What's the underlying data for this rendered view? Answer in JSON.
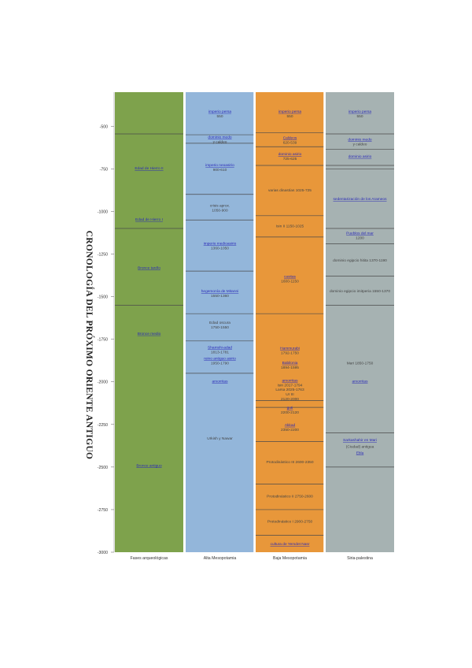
{
  "page": {
    "title": "CRONOLOGÍA DEL PRÓXIMO ORIENTE ANTIGUO"
  },
  "colors": {
    "green": "#7ea24c",
    "blue": "#93b6da",
    "orange": "#e8973a",
    "gray": "#a6b2b2",
    "link": "#2a2ab8",
    "text": "#444444",
    "divider": "#4a4a4a"
  },
  "chart_data": {
    "type": "table",
    "ylim": [
      -3000,
      -300
    ],
    "yticks": [
      -500,
      -750,
      -1000,
      -1250,
      -1500,
      -1750,
      -2000,
      -2250,
      -2500,
      -2750,
      -3000
    ],
    "columns": [
      {
        "name": "Fases arqueológicas",
        "color": "green",
        "boundaries": [
          -545,
          -1100,
          -1550
        ],
        "labels": [
          {
            "lines": [
              "Edad de Hierro II"
            ],
            "y": -745,
            "link": true
          },
          {
            "lines": [
              "Edad de Hierro I"
            ],
            "y": -1045,
            "link": true
          },
          {
            "lines": [
              "Bronce tardío"
            ],
            "y": -1330,
            "link": true
          },
          {
            "lines": [
              "Bronce medio"
            ],
            "y": -1715,
            "link": true
          },
          {
            "lines": [
              "Bronce antiguo"
            ],
            "y": -2490,
            "link": true
          }
        ]
      },
      {
        "name": "Alta Mesopotamia",
        "color": "blue",
        "boundaries": [
          -550,
          -600,
          -900,
          -1050,
          -1350,
          -1600,
          -1760,
          -1950
        ],
        "labels": [
          {
            "lines": [
              "imperio persa",
              "550"
            ],
            "y": -425,
            "link": true
          },
          {
            "lines": [
              "dominio medo",
              "y caldeo"
            ],
            "y": -575,
            "link": true
          },
          {
            "lines": [
              "imperio neoasirio",
              "900-610"
            ],
            "y": -740,
            "link": true
          },
          {
            "lines": [
              "crisis aprox.",
              "1050-900"
            ],
            "y": -978,
            "link": false
          },
          {
            "lines": [
              "imperio medioasirio",
              "1360-1050"
            ],
            "y": -1200,
            "link": true
          },
          {
            "lines": [
              "hegemonía de Mitanni",
              "1550-1360"
            ],
            "y": -1480,
            "link": true
          },
          {
            "lines": [
              "Edad oscura",
              "1750-1550"
            ],
            "y": -1665,
            "link": false
          },
          {
            "lines": [
              "Shamshi-adad",
              "1813-1781"
            ],
            "y": -1810,
            "link": true
          },
          {
            "lines": [
              "reino antiguo asirio",
              "1950-1790"
            ],
            "y": -1875,
            "link": true
          },
          {
            "lines": [
              "amorritas"
            ],
            "y": -1995,
            "link": true
          },
          {
            "lines": [
              "Urkish y Nawar"
            ],
            "y": -2330,
            "link": false
          }
        ]
      },
      {
        "name": "Baja Mesopotamia",
        "color": "orange",
        "boundaries": [
          -539,
          -620,
          -730,
          -1025,
          -1150,
          -1600,
          -2110,
          -2150,
          -2350,
          -2600,
          -2750,
          -2900
        ],
        "labels": [
          {
            "lines": [
              "imperio persa",
              "550"
            ],
            "y": -425,
            "link": true
          },
          {
            "lines": [
              "Caldeos",
              "620-539"
            ],
            "y": -580,
            "link": true
          },
          {
            "lines": [
              "dominio asirio",
              "725-625"
            ],
            "y": -676,
            "link": true
          },
          {
            "lines": [
              "varias dinastías 1025-725"
            ],
            "y": -875,
            "link": false
          },
          {
            "lines": [
              "Isin II 1150-1025"
            ],
            "y": -1085,
            "link": false
          },
          {
            "lines": [
              "casitas",
              "1600-1150"
            ],
            "y": -1395,
            "link": true
          },
          {
            "lines": [
              "Hammurabi",
              "1792-1750"
            ],
            "y": -1815,
            "link": true
          },
          {
            "lines": [
              "Babilonia",
              "1894-1595"
            ],
            "y": -1900,
            "link": true
          },
          {
            "lines": [
              "amorritas",
              "Isin 2017-1794"
            ],
            "y": -2005,
            "link": true
          },
          {
            "lines": [
              "Larsa 2025-1763"
            ],
            "y": -2045,
            "link": false
          },
          {
            "lines": [
              "Ur III",
              "2120-2000"
            ],
            "y": -2085,
            "link": false
          },
          {
            "lines": [
              "guti",
              "2200-2120"
            ],
            "y": -2165,
            "link": true
          },
          {
            "lines": [
              "Akkad",
              "2350-2200"
            ],
            "y": -2265,
            "link": true
          },
          {
            "lines": [
              "Protodinástico III 2600-2350"
            ],
            "y": -2470,
            "link": false
          },
          {
            "lines": [
              "Protodinástico II 2750-2600"
            ],
            "y": -2670,
            "link": false
          },
          {
            "lines": [
              "Protodinástico I 2900-2750"
            ],
            "y": -2818,
            "link": false
          },
          {
            "lines": [
              "cultura de Yemdet Nasr"
            ],
            "y": -2950,
            "link": true
          }
        ]
      },
      {
        "name": "Siria-palestina",
        "color": "gray",
        "boundaries": [
          -545,
          -635,
          -730,
          -750,
          -1100,
          -1190,
          -1380,
          -1550,
          -2300,
          -2500
        ],
        "labels": [
          {
            "lines": [
              "imperio persa",
              "550"
            ],
            "y": -425,
            "link": true
          },
          {
            "lines": [
              "dominio medo",
              "y caldeo"
            ],
            "y": -590,
            "link": true
          },
          {
            "lines": [
              "dominio asirio"
            ],
            "y": -675,
            "link": true
          },
          {
            "lines": [
              "sedentarización de los Arameos"
            ],
            "y": -925,
            "link": true
          },
          {
            "lines": [
              "Pueblos del mar",
              "1200"
            ],
            "y": -1140,
            "link": true
          },
          {
            "lines": [
              "dominio egipcio hitita 1370-1190"
            ],
            "y": -1285,
            "link": false
          },
          {
            "lines": [
              "dominio egipcio imitperia 1550-1370"
            ],
            "y": -1465,
            "link": false
          },
          {
            "lines": [
              "Mari 1850-1750"
            ],
            "y": -1890,
            "link": false
          },
          {
            "lines": [
              "amorritas"
            ],
            "y": -1995,
            "link": true
          },
          {
            "lines": [
              "Sarkashahir en Mari"
            ],
            "y": -2340,
            "link": true
          },
          {
            "lines": [
              "(Ciudad) antigua"
            ],
            "y": -2380,
            "link": false
          },
          {
            "lines": [
              "Ebla"
            ],
            "y": -2415,
            "link": true
          }
        ]
      }
    ]
  }
}
